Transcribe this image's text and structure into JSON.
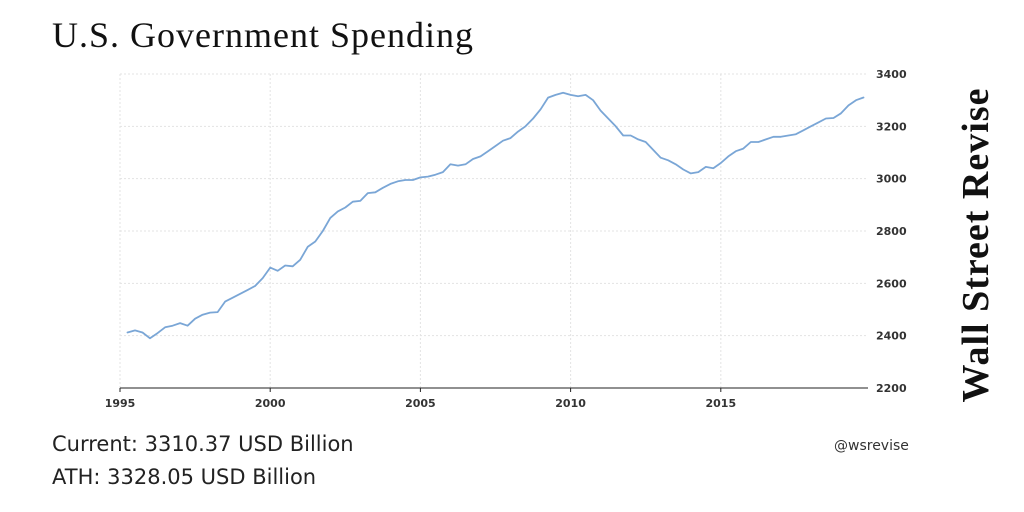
{
  "title": "U.S. Government Spending",
  "brand": "Wall Street Revise",
  "handle": "@wsrevise",
  "stats": {
    "current_label": "Current:",
    "current_value": "3310.37",
    "current_unit": "USD Billion",
    "ath_label": "ATH:",
    "ath_value": "3328.05",
    "ath_unit": "USD Billion"
  },
  "colors": {
    "line": "#7aa6d6",
    "grid": "#e3e3e3",
    "axis": "#222222"
  },
  "chart_data": {
    "type": "line",
    "title": "U.S. Government Spending",
    "xlabel": "",
    "ylabel": "",
    "xlim": [
      1995,
      2019.9
    ],
    "ylim": [
      2200,
      3400
    ],
    "xticks": [
      1995,
      2000,
      2005,
      2010,
      2015
    ],
    "yticks": [
      2200,
      2400,
      2600,
      2800,
      3000,
      3200,
      3400
    ],
    "y_axis_side": "right",
    "grid": true,
    "series": [
      {
        "name": "U.S. Government Spending",
        "x": [
          1995.25,
          1995.5,
          1995.75,
          1996.0,
          1996.25,
          1996.5,
          1996.75,
          1997.0,
          1997.25,
          1997.5,
          1997.75,
          1998.0,
          1998.25,
          1998.5,
          1998.75,
          1999.0,
          1999.25,
          1999.5,
          1999.75,
          2000.0,
          2000.25,
          2000.5,
          2000.75,
          2001.0,
          2001.25,
          2001.5,
          2001.75,
          2002.0,
          2002.25,
          2002.5,
          2002.75,
          2003.0,
          2003.25,
          2003.5,
          2003.75,
          2004.0,
          2004.25,
          2004.5,
          2004.75,
          2005.0,
          2005.25,
          2005.5,
          2005.75,
          2006.0,
          2006.25,
          2006.5,
          2006.75,
          2007.0,
          2007.25,
          2007.5,
          2007.75,
          2008.0,
          2008.25,
          2008.5,
          2008.75,
          2009.0,
          2009.25,
          2009.5,
          2009.75,
          2010.0,
          2010.25,
          2010.5,
          2010.75,
          2011.0,
          2011.25,
          2011.5,
          2011.75,
          2012.0,
          2012.25,
          2012.5,
          2012.75,
          2013.0,
          2013.25,
          2013.5,
          2013.75,
          2014.0,
          2014.25,
          2014.5,
          2014.75,
          2015.0,
          2015.25,
          2015.5,
          2015.75,
          2016.0,
          2016.25,
          2016.5,
          2016.75,
          2017.0,
          2017.25,
          2017.5,
          2017.75,
          2018.0,
          2018.25,
          2018.5,
          2018.75,
          2019.0,
          2019.25,
          2019.5,
          2019.75
        ],
        "values": [
          2412,
          2420,
          2412,
          2390,
          2410,
          2432,
          2438,
          2448,
          2438,
          2465,
          2480,
          2488,
          2490,
          2530,
          2545,
          2560,
          2575,
          2590,
          2620,
          2660,
          2648,
          2668,
          2665,
          2690,
          2740,
          2760,
          2800,
          2850,
          2875,
          2890,
          2912,
          2915,
          2945,
          2948,
          2965,
          2980,
          2990,
          2995,
          2995,
          3005,
          3008,
          3015,
          3025,
          3055,
          3050,
          3055,
          3075,
          3085,
          3105,
          3125,
          3145,
          3155,
          3180,
          3200,
          3230,
          3265,
          3310,
          3320,
          3328.05,
          3320,
          3315,
          3320,
          3300,
          3260,
          3230,
          3200,
          3165,
          3165,
          3150,
          3140,
          3110,
          3080,
          3070,
          3055,
          3035,
          3020,
          3025,
          3045,
          3040,
          3060,
          3085,
          3105,
          3115,
          3140,
          3140,
          3150,
          3160,
          3160,
          3165,
          3170,
          3185,
          3200,
          3215,
          3230,
          3232,
          3250,
          3280,
          3300,
          3310.37
        ]
      }
    ]
  }
}
